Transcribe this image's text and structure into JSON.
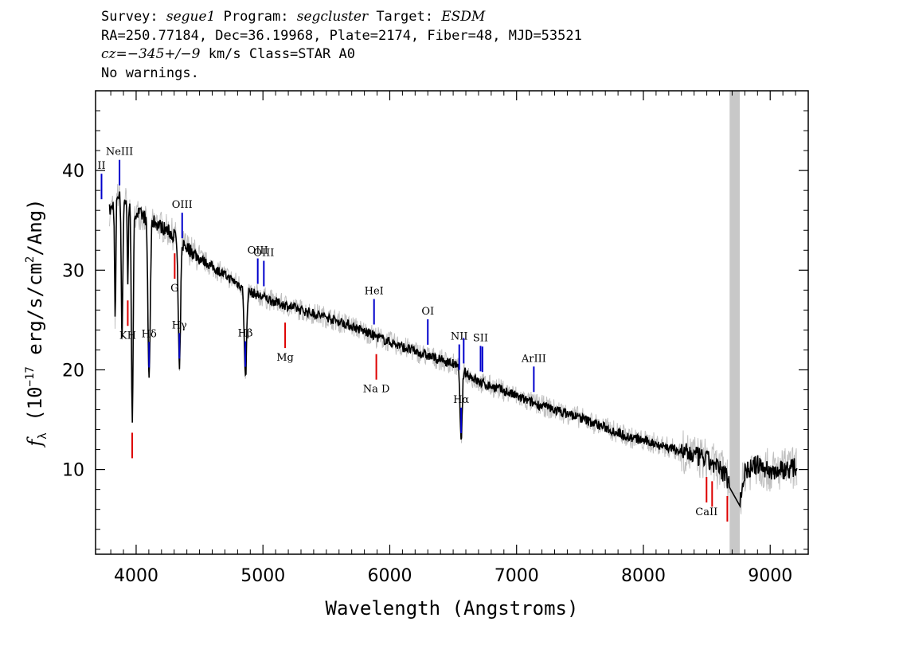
{
  "header": {
    "line1": {
      "survey_label": "Survey: ",
      "survey_value": "segue1",
      "program_label": " Program: ",
      "program_value": "segcluster",
      "target_label": " Target: ",
      "target_value": "ESDM"
    },
    "line2": "RA=250.77184, Dec=36.19968, Plate=2174, Fiber=48, MJD=53521",
    "line3": {
      "cz_label": "cz=",
      "cz_value": "−345+/−9",
      "cz_rest": " km/s Class=STAR A0"
    },
    "line4": "No warnings."
  },
  "colors": {
    "flux": "#000000",
    "noise_band": "#c0c0c0",
    "masked_region": "#c8c8c8",
    "emission_marker": "#0000cc",
    "absorption_marker": "#dd0000"
  },
  "chart_data": {
    "type": "line",
    "xlabel": "Wavelength (Angstroms)",
    "ylabel": "f_λ (10^-17 erg/s/cm^2/Ang)",
    "ylabel_parts": {
      "f": "f",
      "sub": "λ",
      "pre": " (10",
      "exp": "−17",
      "mid": " erg/s/cm",
      "exp2": "2",
      "post": "/Ang)"
    },
    "xlim": [
      3680,
      9300
    ],
    "ylim": [
      1.5,
      48
    ],
    "xticks": [
      4000,
      5000,
      6000,
      7000,
      8000,
      9000
    ],
    "yticks": [
      10,
      20,
      30,
      40
    ],
    "masked_region": [
      8680,
      8760
    ],
    "continuum": [
      [
        3800,
        36.0
      ],
      [
        3850,
        37.6
      ],
      [
        3900,
        37.2
      ],
      [
        4000,
        35.8
      ],
      [
        4150,
        34.8
      ],
      [
        4300,
        33.5
      ],
      [
        4400,
        32.3
      ],
      [
        4500,
        31.2
      ],
      [
        4700,
        29.5
      ],
      [
        4900,
        27.8
      ],
      [
        5100,
        26.8
      ],
      [
        5300,
        26.0
      ],
      [
        5500,
        25.3
      ],
      [
        5700,
        24.4
      ],
      [
        5900,
        23.3
      ],
      [
        6100,
        22.3
      ],
      [
        6300,
        21.4
      ],
      [
        6500,
        20.6
      ],
      [
        6700,
        18.8
      ],
      [
        6900,
        17.9
      ],
      [
        7100,
        16.8
      ],
      [
        7300,
        16.0
      ],
      [
        7500,
        15.2
      ],
      [
        7700,
        14.2
      ],
      [
        7900,
        13.2
      ],
      [
        8100,
        12.6
      ],
      [
        8300,
        11.8
      ],
      [
        8500,
        11.0
      ],
      [
        8650,
        9.5
      ],
      [
        8700,
        7.8
      ],
      [
        8760,
        7.0
      ],
      [
        8800,
        9.8
      ],
      [
        8900,
        10.5
      ],
      [
        9000,
        9.8
      ],
      [
        9100,
        10.0
      ],
      [
        9200,
        10.2
      ]
    ],
    "absorption_features": [
      {
        "center": 3835,
        "depth": 12.0,
        "width": 5
      },
      {
        "center": 3889,
        "depth": 14.0,
        "width": 6
      },
      {
        "center": 3934,
        "depth": 8.0,
        "width": 4
      },
      {
        "center": 3970,
        "depth": 21.0,
        "width": 7
      },
      {
        "center": 4102,
        "depth": 16.0,
        "width": 9
      },
      {
        "center": 4341,
        "depth": 13.0,
        "width": 9
      },
      {
        "center": 4862,
        "depth": 9.0,
        "width": 9
      },
      {
        "center": 6563,
        "depth": 7.5,
        "width": 8
      }
    ],
    "emission_lines": [
      {
        "label": "NeIII",
        "wavelength": 3869
      },
      {
        "label": "II",
        "wavelength": 3727
      },
      {
        "label": "Hδ",
        "wavelength": 4102
      },
      {
        "label": "Hγ",
        "wavelength": 4341
      },
      {
        "label": "OIII",
        "wavelength": 4363
      },
      {
        "label": "Hβ",
        "wavelength": 4861
      },
      {
        "label": "OIII",
        "wavelength": 4959
      },
      {
        "label": "OIII",
        "wavelength": 5007
      },
      {
        "label": "HeI",
        "wavelength": 5876
      },
      {
        "label": "OI",
        "wavelength": 6300
      },
      {
        "label": "NII",
        "wavelength": 6548
      },
      {
        "label": "Hα",
        "wavelength": 6563
      },
      {
        "label": "NII",
        "wavelength": 6583
      },
      {
        "label": "SII",
        "wavelength": 6716
      },
      {
        "label": "SII",
        "wavelength": 6731
      },
      {
        "label": "ArIII",
        "wavelength": 7136
      }
    ],
    "absorption_lines": [
      {
        "label": "KH",
        "wavelength": 3934
      },
      {
        "label": "KH",
        "wavelength": 3969
      },
      {
        "label": "G",
        "wavelength": 4304
      },
      {
        "label": "Mg",
        "wavelength": 5175
      },
      {
        "label": "Na D",
        "wavelength": 5894
      },
      {
        "label": "CaII",
        "wavelength": 8498
      },
      {
        "label": "CaII",
        "wavelength": 8542
      },
      {
        "label": "CaII",
        "wavelength": 8662
      }
    ]
  }
}
